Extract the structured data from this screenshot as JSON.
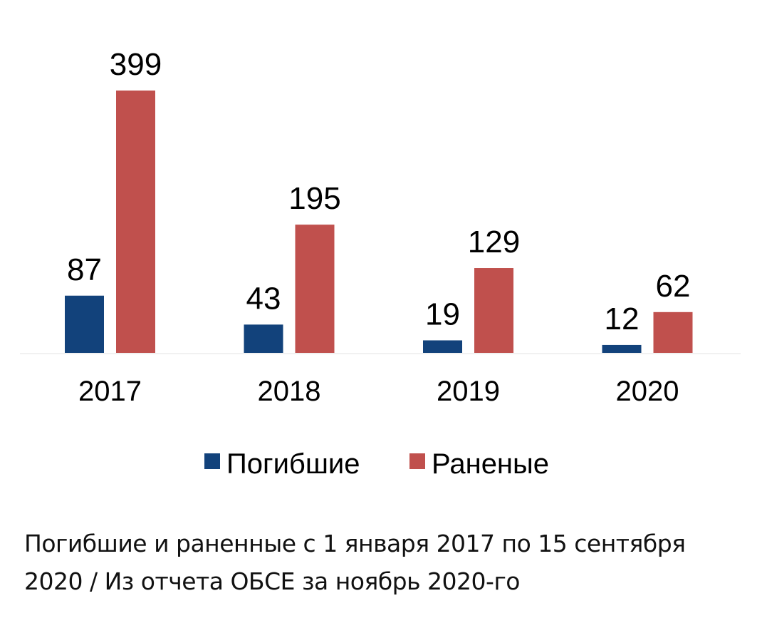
{
  "chart_data": {
    "type": "bar",
    "title": "",
    "xlabel": "",
    "ylabel": "",
    "categories": [
      "2017",
      "2018",
      "2019",
      "2020"
    ],
    "series": [
      {
        "name": "Погибшие",
        "color": "#12427b",
        "values": [
          87,
          43,
          19,
          12
        ]
      },
      {
        "name": "Раненые",
        "color": "#c0504d",
        "values": [
          399,
          195,
          129,
          62
        ]
      }
    ],
    "ylim": [
      0,
      399
    ],
    "grid": false,
    "axis_ticks_visible": false,
    "data_labels": true,
    "legend_position": "bottom"
  },
  "caption": {
    "line1": "Погибшие и раненные с 1 января 2017 по 15 сентября",
    "line2": "2020 / Из отчета ОБСЕ за ноябрь 2020-го"
  }
}
